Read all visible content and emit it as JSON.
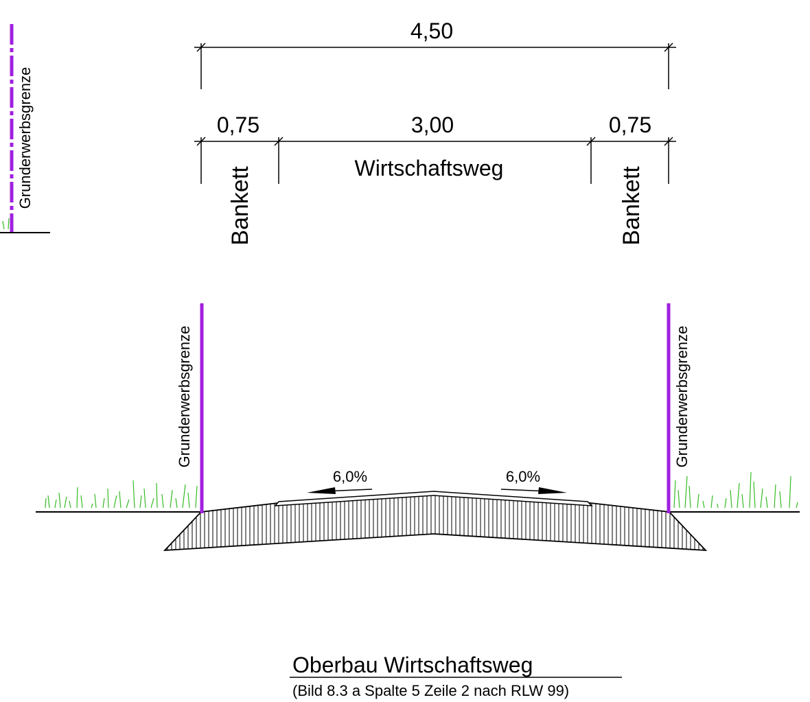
{
  "dimensions": {
    "total": "4,50",
    "left_bankett": "0,75",
    "road": "3,00",
    "right_bankett": "0,75"
  },
  "labels": {
    "road": "Wirtschaftsweg",
    "left_bankett": "Bankett",
    "right_bankett": "Bankett",
    "boundary_top_left": "Grunderwerbsgrenze",
    "boundary_left": "Grunderwerbsgrenze",
    "boundary_right": "Grunderwerbsgrenze"
  },
  "slopes": {
    "left": "6,0%",
    "right": "6,0%"
  },
  "caption": {
    "title": "Oberbau Wirtschaftsweg",
    "subtitle": "(Bild 8.3 a Spalte 5 Zeile 2 nach RLW 99)"
  },
  "colors": {
    "boundary": "#a020e0",
    "grass": "#33bb22",
    "line": "#000000"
  }
}
